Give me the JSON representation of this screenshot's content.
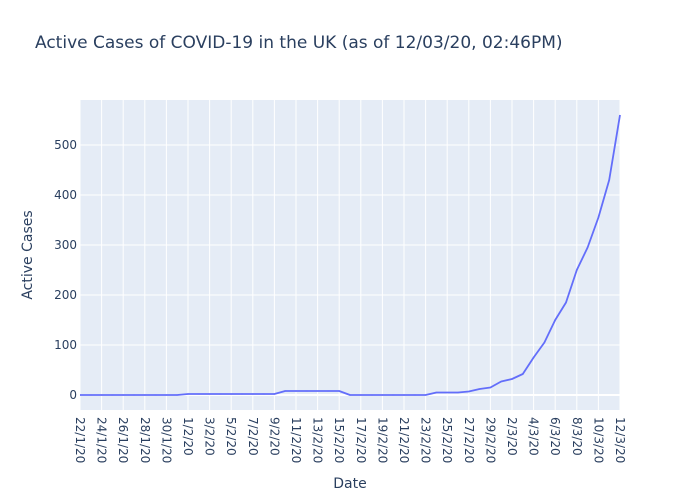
{
  "chart_data": {
    "type": "line",
    "title": "Active Cases of COVID-19 in the UK (as of 12/03/20, 02:46PM)",
    "xlabel": "Date",
    "ylabel": "Active Cases",
    "ylim": [
      -30,
      590
    ],
    "yticks": [
      0,
      100,
      200,
      300,
      400,
      500
    ],
    "grid": true,
    "legend": "none",
    "colors": {
      "line": "#636efa",
      "plot_bg": "#e5ecf6",
      "grid": "#ffffff",
      "text": "#2a3f5f"
    },
    "x_tick_labels": [
      "22/1/20",
      "24/1/20",
      "26/1/20",
      "28/1/20",
      "30/1/20",
      "1/2/20",
      "3/2/20",
      "5/2/20",
      "7/2/20",
      "9/2/20",
      "11/2/20",
      "13/2/20",
      "15/2/20",
      "17/2/20",
      "19/2/20",
      "21/2/20",
      "23/2/20",
      "25/2/20",
      "27/2/20",
      "29/2/20",
      "2/3/20",
      "4/3/20",
      "6/3/20",
      "8/3/20",
      "10/3/20",
      "12/3/20"
    ],
    "x": [
      "22/1/20",
      "23/1/20",
      "24/1/20",
      "25/1/20",
      "26/1/20",
      "27/1/20",
      "28/1/20",
      "29/1/20",
      "30/1/20",
      "31/1/20",
      "1/2/20",
      "2/2/20",
      "3/2/20",
      "4/2/20",
      "5/2/20",
      "6/2/20",
      "7/2/20",
      "8/2/20",
      "9/2/20",
      "10/2/20",
      "11/2/20",
      "12/2/20",
      "13/2/20",
      "14/2/20",
      "15/2/20",
      "16/2/20",
      "17/2/20",
      "18/2/20",
      "19/2/20",
      "20/2/20",
      "21/2/20",
      "22/2/20",
      "23/2/20",
      "24/2/20",
      "25/2/20",
      "26/2/20",
      "27/2/20",
      "28/2/20",
      "29/2/20",
      "1/3/20",
      "2/3/20",
      "3/3/20",
      "4/3/20",
      "5/3/20",
      "6/3/20",
      "7/3/20",
      "8/3/20",
      "9/3/20",
      "10/3/20",
      "11/3/20",
      "12/3/20"
    ],
    "series": [
      {
        "values": [
          0,
          0,
          0,
          0,
          0,
          0,
          0,
          0,
          0,
          0,
          2,
          2,
          2,
          2,
          2,
          2,
          2,
          2,
          2,
          8,
          8,
          8,
          8,
          8,
          8,
          0,
          0,
          0,
          0,
          0,
          0,
          0,
          0,
          5,
          5,
          5,
          7,
          12,
          15,
          27,
          32,
          42,
          75,
          105,
          150,
          185,
          250,
          295,
          355,
          430,
          560
        ]
      }
    ]
  }
}
